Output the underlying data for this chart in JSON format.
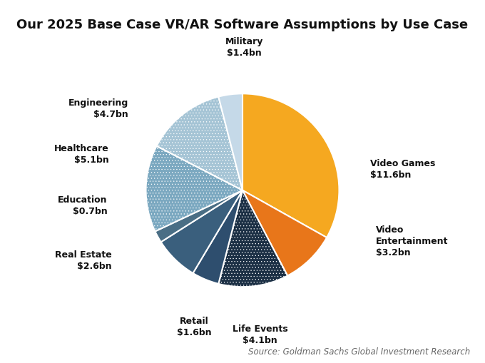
{
  "title": "Our 2025 Base Case VR/AR Software Assumptions by Use Case",
  "source": "Source: Goldman Sachs Global Investment Research",
  "slices": [
    {
      "label": "Video Games",
      "value": 11.6,
      "color": "#F5A820",
      "hatch": null
    },
    {
      "label": "Video Entertainment",
      "value": 3.2,
      "color": "#E8761A",
      "hatch": null
    },
    {
      "label": "Life Events",
      "value": 4.1,
      "color": "#1C3045",
      "hatch": "...."
    },
    {
      "label": "Retail",
      "value": 1.6,
      "color": "#2E4E6E",
      "hatch": null
    },
    {
      "label": "Real Estate",
      "value": 2.6,
      "color": "#3A5F7D",
      "hatch": null
    },
    {
      "label": "Education",
      "value": 0.7,
      "color": "#4A6E85",
      "hatch": null
    },
    {
      "label": "Healthcare",
      "value": 5.1,
      "color": "#7BA8C0",
      "hatch": "...."
    },
    {
      "label": "Engineering",
      "value": 4.7,
      "color": "#A5C4D5",
      "hatch": "...."
    },
    {
      "label": "Military",
      "value": 1.4,
      "color": "#C5D9E8",
      "hatch": null
    }
  ],
  "label_texts": [
    "Video Games\n$11.6bn",
    "Video\nEntertainment\n$3.2bn",
    "Life Events\n$4.1bn",
    "Retail\n$1.6bn",
    "Real Estate\n$2.6bn",
    "Education\n$0.7bn",
    "Healthcare\n$5.1bn",
    "Engineering\n$4.7bn",
    "Military\n$1.4bn"
  ],
  "figsize": [
    6.8,
    5.1
  ],
  "dpi": 100,
  "title_fontsize": 13,
  "label_fontsize": 9,
  "source_fontsize": 8.5
}
